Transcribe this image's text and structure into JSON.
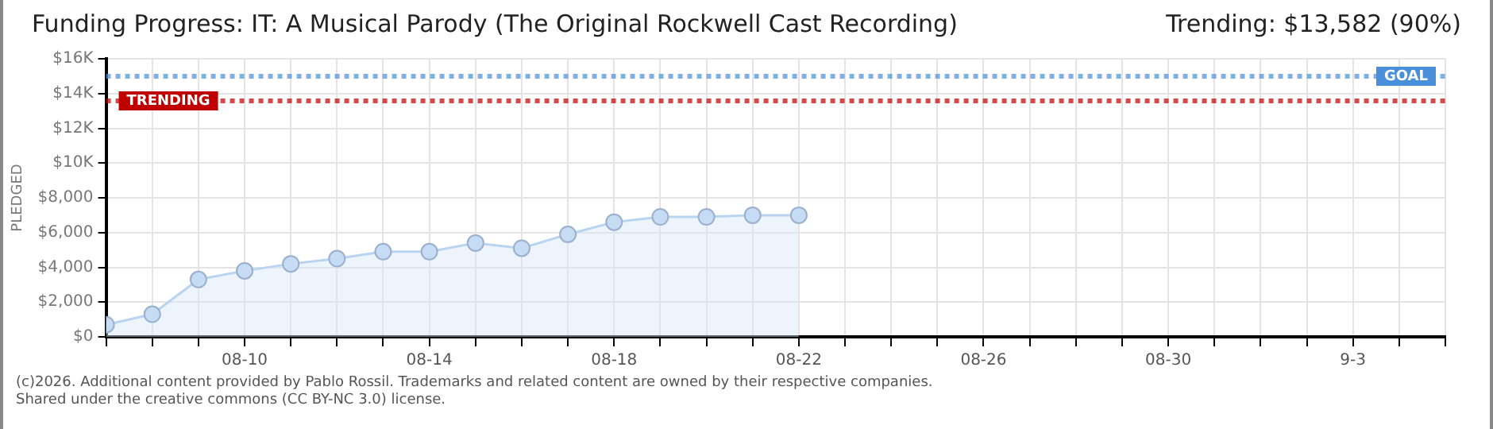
{
  "chart_data": {
    "type": "area",
    "title": "Funding Progress: IT: A Musical Parody (The Original Rockwell Cast Recording)",
    "subtitle": "Trending: $13,582 (90%)",
    "ylabel": "PLEDGED",
    "x": [
      "--08-07",
      "--08-08",
      "--08-09",
      "--08-10",
      "--08-11",
      "--08-12",
      "--08-13",
      "--08-14",
      "--08-15",
      "--08-16",
      "--08-17",
      "--08-18",
      "--08-19",
      "--08-20",
      "--08-21",
      "--08-22"
    ],
    "series": [
      {
        "color": "#b8d4f0",
        "values": [
          700,
          1300,
          3300,
          3800,
          4200,
          4500,
          4900,
          4900,
          5400,
          5100,
          5900,
          6600,
          6900,
          6900,
          7000,
          7000
        ]
      }
    ],
    "xlim": [
      "--08-07",
      "--09-05"
    ],
    "xticks": [
      {
        "value": "--08-07",
        "label": null
      },
      {
        "value": "--08-08",
        "label": null
      },
      {
        "value": "--08-09",
        "label": null
      },
      {
        "value": "--08-10",
        "label": "08-10"
      },
      {
        "value": "--08-11",
        "label": null
      },
      {
        "value": "--08-12",
        "label": null
      },
      {
        "value": "--08-13",
        "label": null
      },
      {
        "value": "--08-14",
        "label": "08-14"
      },
      {
        "value": "--08-15",
        "label": null
      },
      {
        "value": "--08-16",
        "label": null
      },
      {
        "value": "--08-17",
        "label": null
      },
      {
        "value": "--08-18",
        "label": "08-18"
      },
      {
        "value": "--08-19",
        "label": null
      },
      {
        "value": "--08-20",
        "label": null
      },
      {
        "value": "--08-21",
        "label": null
      },
      {
        "value": "--08-22",
        "label": "08-22"
      },
      {
        "value": "--08-23",
        "label": null
      },
      {
        "value": "--08-24",
        "label": null
      },
      {
        "value": "--08-25",
        "label": null
      },
      {
        "value": "--08-26",
        "label": "08-26"
      },
      {
        "value": "--08-27",
        "label": null
      },
      {
        "value": "--08-28",
        "label": null
      },
      {
        "value": "--08-29",
        "label": null
      },
      {
        "value": "--08-30",
        "label": "08-30"
      },
      {
        "value": "--08-31",
        "label": null
      },
      {
        "value": "--09-01",
        "label": null
      },
      {
        "value": "--09-02",
        "label": null
      },
      {
        "value": "--09-03",
        "label": "9-3"
      },
      {
        "value": "--09-04",
        "label": null
      },
      {
        "value": "--09-05",
        "label": null
      }
    ],
    "ylim": [
      0,
      16000
    ],
    "yticks": [
      {
        "value": 0,
        "label": "$0"
      },
      {
        "value": 2000,
        "label": "$2,000"
      },
      {
        "value": 4000,
        "label": "$4,000"
      },
      {
        "value": 6000,
        "label": "$6,000"
      },
      {
        "value": 8000,
        "label": "$8,000"
      },
      {
        "value": 10000,
        "label": "$10K"
      },
      {
        "value": 12000,
        "label": "$12K"
      },
      {
        "value": 14000,
        "label": "$14K"
      },
      {
        "value": 16000,
        "label": "$16K"
      }
    ],
    "ref_lines": [
      {
        "axis": "y",
        "value": 15000,
        "label": "GOAL",
        "color": "#4a8fd9",
        "line_style": "dotted"
      },
      {
        "axis": "y",
        "value": 13582,
        "label": "TRENDING",
        "color": "#c00000",
        "line_style": "dotted"
      }
    ],
    "grid": true,
    "legend": false,
    "marker": "circle",
    "line_style": "solid",
    "annotations": [
      "(c)2026. Additional content provided by Pablo Rossil. Trademarks and related content are owned by their respective companies.",
      "Shared under the creative commons (CC BY-NC 3.0) license."
    ]
  }
}
